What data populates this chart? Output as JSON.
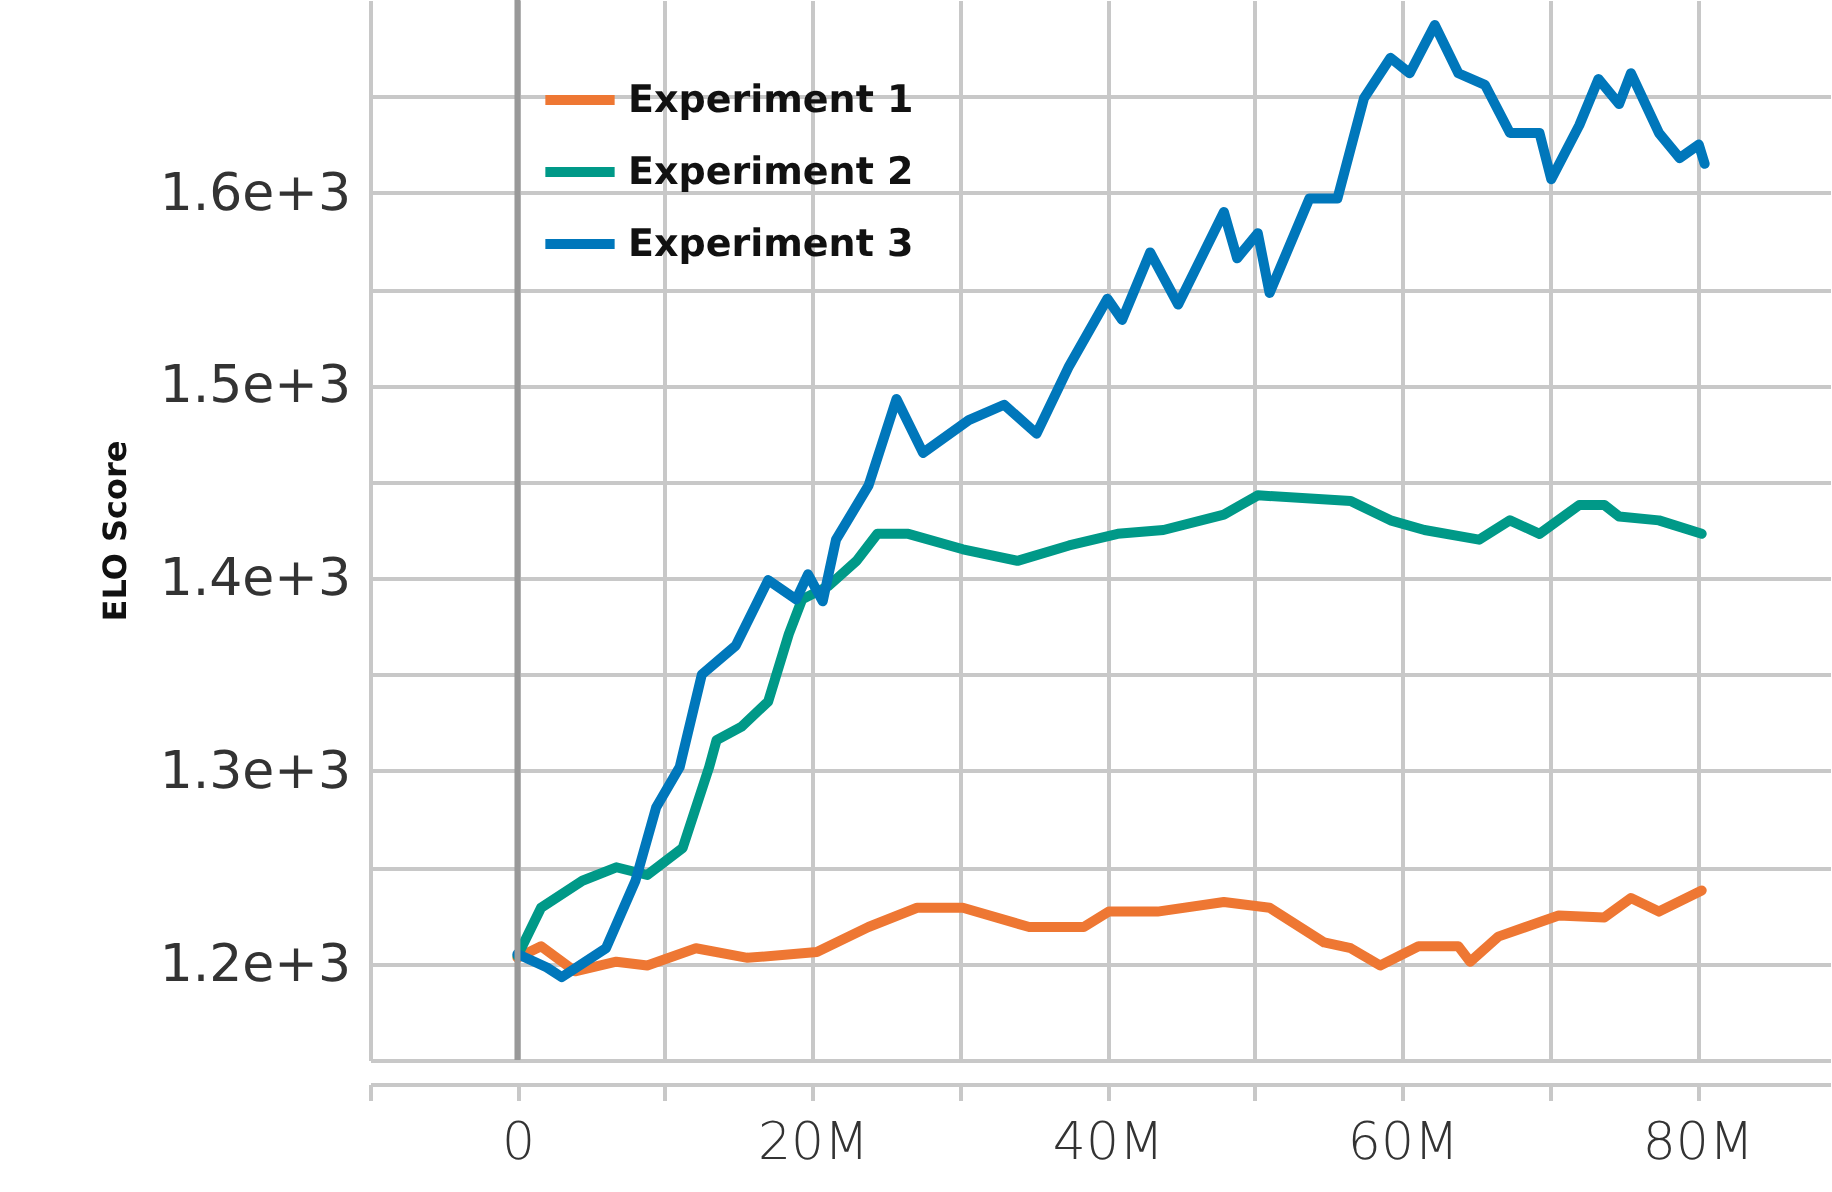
{
  "chart_data": {
    "type": "line",
    "ylabel": "ELO Score",
    "xlim": [
      -10,
      89
    ],
    "ylim": [
      1150,
      1700
    ],
    "xticks": [
      {
        "value": -10,
        "label": null
      },
      {
        "value": 0,
        "label": "0"
      },
      {
        "value": 10,
        "label": null
      },
      {
        "value": 20,
        "label": "20M"
      },
      {
        "value": 30,
        "label": null
      },
      {
        "value": 40,
        "label": "40M"
      },
      {
        "value": 50,
        "label": null
      },
      {
        "value": 60,
        "label": "60M"
      },
      {
        "value": 70,
        "label": null
      },
      {
        "value": 80,
        "label": "80M"
      }
    ],
    "yticks": [
      {
        "value": 1150,
        "label": null
      },
      {
        "value": 1200,
        "label": "1.2e+3"
      },
      {
        "value": 1250,
        "label": null
      },
      {
        "value": 1300,
        "label": "1.3e+3"
      },
      {
        "value": 1350,
        "label": null
      },
      {
        "value": 1400,
        "label": "1.4e+3"
      },
      {
        "value": 1450,
        "label": null
      },
      {
        "value": 1500,
        "label": "1.5e+3"
      },
      {
        "value": 1550,
        "label": null
      },
      {
        "value": 1600,
        "label": "1.6e+3"
      },
      {
        "value": 1650,
        "label": null
      }
    ],
    "grid": true,
    "legend": "top left",
    "line_style": "solid",
    "ref_lines": [
      {
        "axis": "x",
        "value": 0,
        "label": null,
        "color": "#999999"
      }
    ],
    "series": [
      {
        "name": "Experiment 1",
        "color": "#ee7733",
        "x": [
          0,
          1.6,
          3.9,
          6.7,
          8.8,
          12.1,
          15.6,
          20.3,
          23.8,
          27.1,
          30.2,
          34.7,
          38.4,
          40.1,
          43.4,
          47.9,
          51,
          54.7,
          56.5,
          58.5,
          61.1,
          63.8,
          64.6,
          66.5,
          70.6,
          73.7,
          75.5,
          77.4,
          80.3
        ],
        "values": [
          1203,
          1209,
          1196,
          1201,
          1199,
          1208,
          1203,
          1206,
          1219,
          1229,
          1229,
          1219,
          1219,
          1227,
          1227,
          1232,
          1229,
          1211,
          1208,
          1199,
          1209,
          1209,
          1201,
          1214,
          1225,
          1224,
          1234,
          1227,
          1238
        ]
      },
      {
        "name": "Experiment 2",
        "color": "#009988",
        "x": [
          0,
          1.6,
          4.4,
          6.7,
          8.8,
          11.2,
          13,
          13.5,
          15.2,
          17,
          18.4,
          19.3,
          21.1,
          23,
          24.4,
          26.5,
          30.2,
          33.9,
          37.4,
          40.7,
          43.8,
          47.9,
          50.2,
          56.5,
          59.2,
          61.5,
          65.2,
          67.3,
          69.3,
          72,
          73.7,
          74.7,
          77.4,
          80.3
        ],
        "values": [
          1204,
          1229,
          1243,
          1250,
          1246,
          1260,
          1302,
          1316,
          1323,
          1336,
          1371,
          1389,
          1396,
          1409,
          1423,
          1423,
          1415,
          1409,
          1417,
          1423,
          1425,
          1433,
          1443,
          1440,
          1430,
          1425,
          1420,
          1430,
          1423,
          1438,
          1438,
          1432,
          1430,
          1423
        ]
      },
      {
        "name": "Experiment 3",
        "color": "#0077bb",
        "x": [
          0,
          2,
          3,
          6,
          8,
          9.4,
          11,
          12.5,
          14.8,
          17,
          18.9,
          19.7,
          20.7,
          21.6,
          23.8,
          25.7,
          27.5,
          30.6,
          33,
          35.2,
          37.4,
          40,
          41,
          42.9,
          44.8,
          47.9,
          48.8,
          50.2,
          51,
          53.7,
          55.6,
          57.4,
          59.2,
          60.5,
          62.2,
          63.8,
          65.6,
          67.3,
          69.3,
          70.1,
          72,
          73.3,
          74.7,
          75.5,
          77.4,
          78.8,
          80.1,
          80.5
        ],
        "values": [
          1205,
          1198,
          1193,
          1208,
          1243,
          1281,
          1302,
          1350,
          1365,
          1399,
          1389,
          1402,
          1388,
          1420,
          1448,
          1493,
          1465,
          1482,
          1490,
          1475,
          1510,
          1545,
          1534,
          1569,
          1542,
          1590,
          1566,
          1579,
          1548,
          1597,
          1597,
          1649,
          1670,
          1662,
          1687,
          1662,
          1656,
          1631,
          1631,
          1607,
          1635,
          1659,
          1646,
          1662,
          1631,
          1618,
          1625,
          1615
        ]
      }
    ]
  }
}
